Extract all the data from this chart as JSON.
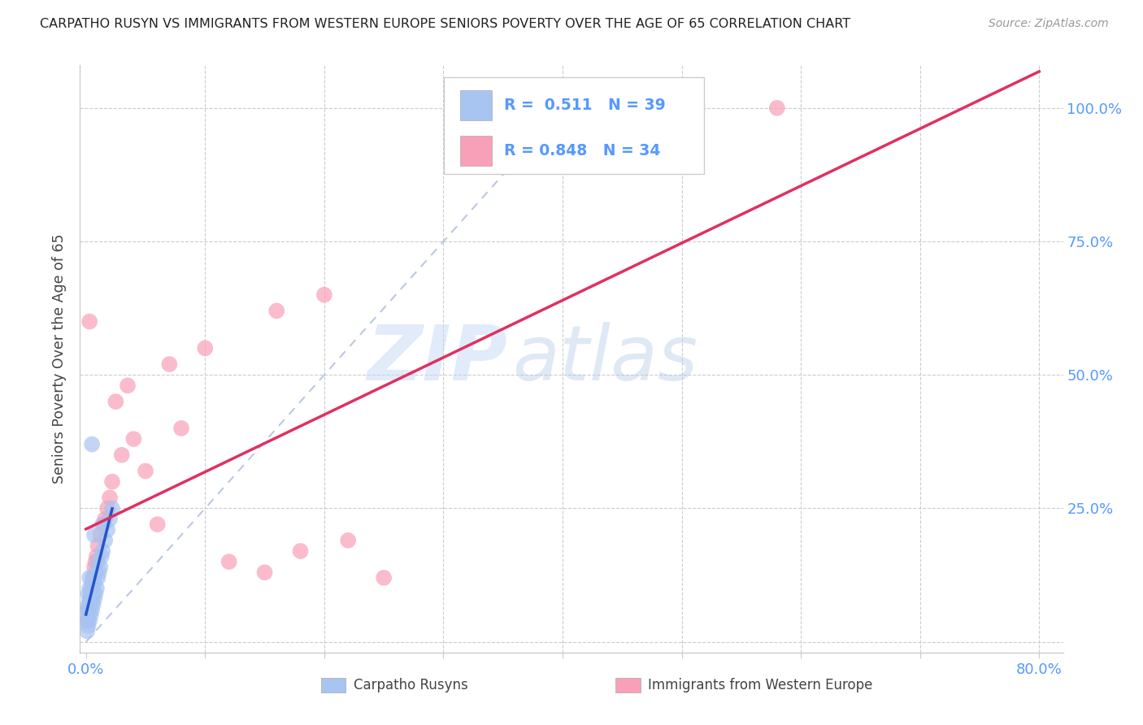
{
  "title": "CARPATHO RUSYN VS IMMIGRANTS FROM WESTERN EUROPE SENIORS POVERTY OVER THE AGE OF 65 CORRELATION CHART",
  "source": "Source: ZipAtlas.com",
  "ylabel": "Seniors Poverty Over the Age of 65",
  "watermark_zip": "ZIP",
  "watermark_atlas": "atlas",
  "xlim": [
    -0.005,
    0.82
  ],
  "ylim": [
    -0.02,
    1.08
  ],
  "x_ticks": [
    0.0,
    0.1,
    0.2,
    0.3,
    0.4,
    0.5,
    0.6,
    0.7,
    0.8
  ],
  "x_tick_labels": [
    "0.0%",
    "",
    "",
    "",
    "",
    "",
    "",
    "",
    "80.0%"
  ],
  "y_ticks": [
    0.0,
    0.25,
    0.5,
    0.75,
    1.0
  ],
  "y_tick_labels_right": [
    "",
    "25.0%",
    "50.0%",
    "75.0%",
    "100.0%"
  ],
  "series1_name": "Carpatho Rusyns",
  "series1_color": "#a8c4f0",
  "series1_edge_color": "none",
  "series1_line_color": "#2255cc",
  "series1_R": 0.511,
  "series1_N": 39,
  "series1_x": [
    0.001,
    0.001,
    0.001,
    0.002,
    0.002,
    0.002,
    0.002,
    0.003,
    0.003,
    0.003,
    0.003,
    0.003,
    0.004,
    0.004,
    0.004,
    0.005,
    0.005,
    0.005,
    0.006,
    0.006,
    0.006,
    0.007,
    0.007,
    0.008,
    0.008,
    0.009,
    0.01,
    0.01,
    0.011,
    0.012,
    0.013,
    0.014,
    0.016,
    0.018,
    0.02,
    0.022,
    0.005,
    0.007,
    0.015
  ],
  "series1_y": [
    0.02,
    0.04,
    0.06,
    0.03,
    0.05,
    0.07,
    0.09,
    0.04,
    0.06,
    0.08,
    0.1,
    0.12,
    0.05,
    0.07,
    0.09,
    0.06,
    0.08,
    0.11,
    0.07,
    0.09,
    0.12,
    0.08,
    0.11,
    0.09,
    0.13,
    0.1,
    0.12,
    0.15,
    0.13,
    0.14,
    0.16,
    0.17,
    0.19,
    0.21,
    0.23,
    0.25,
    0.37,
    0.2,
    0.22
  ],
  "series2_name": "Immigrants from Western Europe",
  "series2_color": "#f8a0b8",
  "series2_edge_color": "none",
  "series2_line_color": "#e03060",
  "series2_R": 0.848,
  "series2_N": 34,
  "series2_x": [
    0.001,
    0.002,
    0.003,
    0.004,
    0.005,
    0.006,
    0.007,
    0.008,
    0.009,
    0.01,
    0.012,
    0.014,
    0.016,
    0.018,
    0.02,
    0.022,
    0.025,
    0.03,
    0.035,
    0.04,
    0.05,
    0.06,
    0.07,
    0.08,
    0.1,
    0.12,
    0.15,
    0.16,
    0.18,
    0.2,
    0.22,
    0.25,
    0.58,
    0.003
  ],
  "series2_y": [
    0.04,
    0.06,
    0.07,
    0.08,
    0.1,
    0.12,
    0.14,
    0.15,
    0.16,
    0.18,
    0.2,
    0.22,
    0.23,
    0.25,
    0.27,
    0.3,
    0.45,
    0.35,
    0.48,
    0.38,
    0.32,
    0.22,
    0.52,
    0.4,
    0.55,
    0.15,
    0.13,
    0.62,
    0.17,
    0.65,
    0.19,
    0.12,
    1.0,
    0.6
  ],
  "background_color": "#ffffff",
  "grid_color": "#cccccc",
  "title_fontsize": 11.5,
  "axis_tick_color": "#5599ff",
  "ylabel_color": "#444444",
  "legend_color": "#5599ff"
}
